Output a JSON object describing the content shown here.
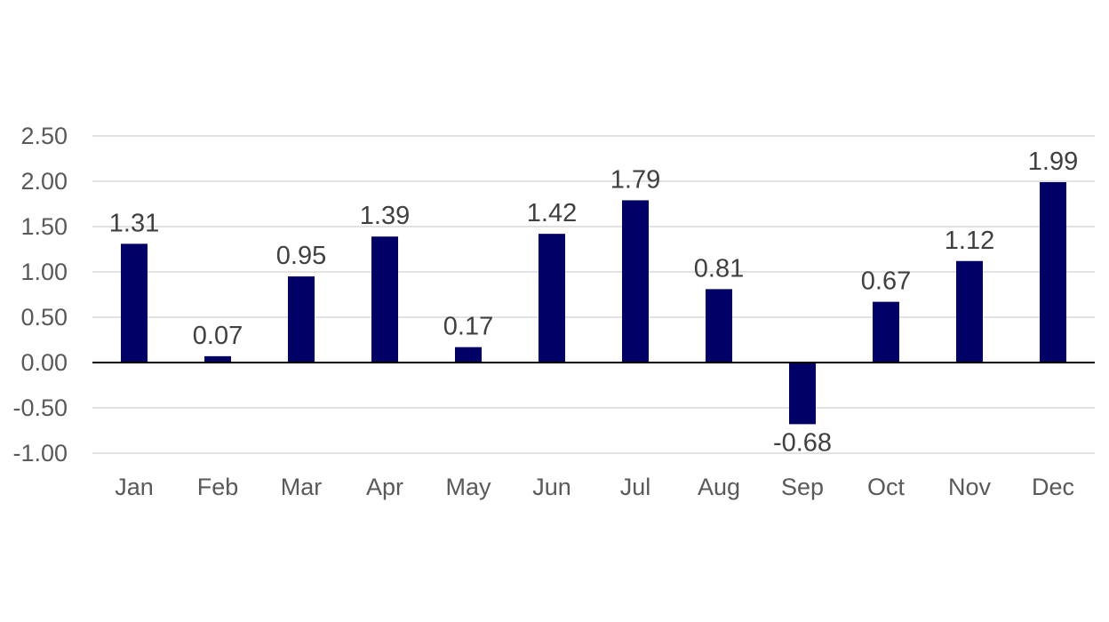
{
  "chart_data": {
    "type": "bar",
    "categories": [
      "Jan",
      "Feb",
      "Mar",
      "Apr",
      "May",
      "Jun",
      "Jul",
      "Aug",
      "Sep",
      "Oct",
      "Nov",
      "Dec"
    ],
    "values": [
      1.31,
      0.07,
      0.95,
      1.39,
      0.17,
      1.42,
      1.79,
      0.81,
      -0.68,
      0.67,
      1.12,
      1.99
    ],
    "data_labels": [
      "1.31",
      "0.07",
      "0.95",
      "1.39",
      "0.17",
      "1.42",
      "1.79",
      "0.81",
      "-0.68",
      "0.67",
      "1.12",
      "1.99"
    ],
    "y_ticks": [
      2.5,
      2.0,
      1.5,
      1.0,
      0.5,
      0.0,
      -0.5,
      -1.0
    ],
    "y_tick_labels": [
      "2.50",
      "2.00",
      "1.50",
      "1.00",
      "0.50",
      "0.00",
      "-0.50",
      "-1.00"
    ],
    "ylim": [
      -1.0,
      2.5
    ],
    "title": "",
    "xlabel": "",
    "ylabel": "",
    "grid": true,
    "legend": "none",
    "bar_color": "#000066"
  }
}
